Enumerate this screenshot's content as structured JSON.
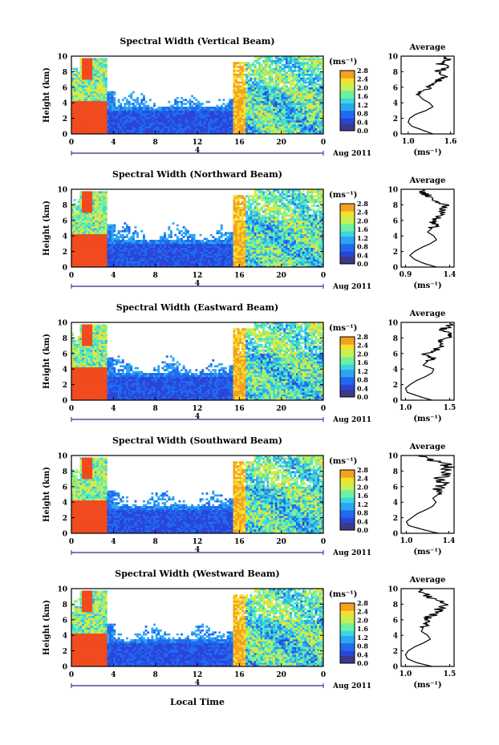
{
  "figure": {
    "xlabel": "Local Time",
    "date_label": "Aug 2011",
    "day_marker": "4"
  },
  "colorbar": {
    "unit": "(ms⁻¹)",
    "ticks": [
      "0.0",
      "0.4",
      "0.8",
      "1.2",
      "1.6",
      "2.0",
      "2.4",
      "2.8"
    ],
    "colors": [
      "#3a3a8c",
      "#2a44d8",
      "#1f6af0",
      "#2da6f0",
      "#38d8e0",
      "#6ff0a0",
      "#c8f050",
      "#f5e02a",
      "#f5a020",
      "#f04a1e"
    ]
  },
  "chart_data": [
    {
      "type": "heatmap",
      "title": "Spectral Width (Vertical Beam)",
      "ylabel": "Height (km)",
      "x_ticks": [
        "0",
        "4",
        "8",
        "12",
        "16",
        "20",
        "0"
      ],
      "y_ticks": [
        "0",
        "2",
        "4",
        "6",
        "8",
        "10"
      ],
      "xlim": [
        0,
        24
      ],
      "ylim": [
        0,
        10
      ],
      "avg_panel": {
        "title": "Average",
        "xlabel": "(ms⁻¹)",
        "x_ticks": [
          "1.0",
          "1.6"
        ],
        "xlim": [
          0.9,
          1.65
        ],
        "y_ticks": [
          "0",
          "2",
          "4",
          "6",
          "8",
          "10"
        ],
        "profile_heights": [
          0,
          0.5,
          1,
          1.5,
          2,
          2.5,
          3,
          3.5,
          4,
          4.5,
          5,
          5.5,
          6,
          6.5,
          7,
          7.5,
          8,
          8.5,
          9,
          9.5,
          10
        ],
        "profile_values": [
          1.35,
          1.2,
          1.05,
          1.0,
          1.02,
          1.1,
          1.25,
          1.35,
          1.3,
          1.2,
          1.15,
          1.2,
          1.3,
          1.38,
          1.45,
          1.55,
          1.4,
          1.58,
          1.45,
          1.55,
          1.5
        ]
      }
    },
    {
      "type": "heatmap",
      "title": "Spectral Width (Northward Beam)",
      "ylabel": "Height (km)",
      "x_ticks": [
        "0",
        "4",
        "8",
        "12",
        "16",
        "20",
        "0"
      ],
      "y_ticks": [
        "0",
        "2",
        "4",
        "6",
        "8",
        "10"
      ],
      "xlim": [
        0,
        24
      ],
      "ylim": [
        0,
        10
      ],
      "avg_panel": {
        "title": "Average",
        "xlabel": "(ms⁻¹)",
        "x_ticks": [
          "0.9",
          "1.4"
        ],
        "xlim": [
          0.85,
          1.45
        ],
        "y_ticks": [
          "0",
          "2",
          "4",
          "6",
          "8",
          "10"
        ],
        "profile_heights": [
          0,
          0.5,
          1,
          1.5,
          2,
          2.5,
          3,
          3.5,
          4,
          4.5,
          5,
          5.5,
          6,
          6.5,
          7,
          7.5,
          8,
          8.5,
          9,
          9.5,
          10
        ],
        "profile_values": [
          1.25,
          1.1,
          1.0,
          0.95,
          1.0,
          1.08,
          1.18,
          1.25,
          1.22,
          1.15,
          1.2,
          1.25,
          1.2,
          1.3,
          1.35,
          1.3,
          1.38,
          1.25,
          1.2,
          1.1,
          1.05
        ]
      }
    },
    {
      "type": "heatmap",
      "title": "Spectral Width (Eastward Beam)",
      "ylabel": "Height (km)",
      "x_ticks": [
        "0",
        "4",
        "8",
        "12",
        "16",
        "20",
        "0"
      ],
      "y_ticks": [
        "0",
        "2",
        "4",
        "6",
        "8",
        "10"
      ],
      "xlim": [
        0,
        24
      ],
      "ylim": [
        0,
        10
      ],
      "avg_panel": {
        "title": "Average",
        "xlabel": "(ms⁻¹)",
        "x_ticks": [
          "1.0",
          "1.5"
        ],
        "xlim": [
          0.95,
          1.55
        ],
        "y_ticks": [
          "0",
          "2",
          "4",
          "6",
          "8",
          "10"
        ],
        "profile_heights": [
          0,
          0.5,
          1,
          1.5,
          2,
          2.5,
          3,
          3.5,
          4,
          4.5,
          5,
          5.5,
          6,
          6.5,
          7,
          7.5,
          8,
          8.5,
          9,
          9.5,
          10
        ],
        "profile_values": [
          1.3,
          1.15,
          1.02,
          1.0,
          1.05,
          1.12,
          1.22,
          1.3,
          1.32,
          1.2,
          1.25,
          1.3,
          1.22,
          1.35,
          1.4,
          1.35,
          1.45,
          1.5,
          1.4,
          1.5,
          1.45
        ]
      }
    },
    {
      "type": "heatmap",
      "title": "Spectral Width (Southward Beam)",
      "ylabel": "Height (km)",
      "x_ticks": [
        "0",
        "4",
        "8",
        "12",
        "16",
        "20",
        "0"
      ],
      "y_ticks": [
        "0",
        "2",
        "4",
        "6",
        "8",
        "10"
      ],
      "xlim": [
        0,
        24
      ],
      "ylim": [
        0,
        10
      ],
      "avg_panel": {
        "title": "Average",
        "xlabel": "(ms⁻¹)",
        "x_ticks": [
          "1.0",
          "1.4"
        ],
        "xlim": [
          0.95,
          1.45
        ],
        "y_ticks": [
          "0",
          "2",
          "4",
          "6",
          "8",
          "10"
        ],
        "profile_heights": [
          0,
          0.5,
          1,
          1.5,
          2,
          2.5,
          3,
          3.5,
          4,
          4.5,
          5,
          5.5,
          6,
          6.5,
          7,
          7.5,
          8,
          8.5,
          9,
          9.5,
          10
        ],
        "profile_values": [
          1.3,
          1.15,
          1.02,
          1.0,
          1.05,
          1.1,
          1.18,
          1.25,
          1.28,
          1.25,
          1.3,
          1.28,
          1.32,
          1.35,
          1.3,
          1.38,
          1.35,
          1.4,
          1.35,
          1.2,
          1.1
        ]
      }
    },
    {
      "type": "heatmap",
      "title": "Spectral Width (Westward Beam)",
      "ylabel": "Height (km)",
      "x_ticks": [
        "0",
        "4",
        "8",
        "12",
        "16",
        "20",
        "0"
      ],
      "y_ticks": [
        "0",
        "2",
        "4",
        "6",
        "8",
        "10"
      ],
      "xlim": [
        0,
        24
      ],
      "ylim": [
        0,
        10
      ],
      "avg_panel": {
        "title": "Average",
        "xlabel": "(ms⁻¹)",
        "x_ticks": [
          "1.0",
          "1.5"
        ],
        "xlim": [
          0.95,
          1.55
        ],
        "y_ticks": [
          "0",
          "2",
          "4",
          "6",
          "8",
          "10"
        ],
        "profile_heights": [
          0,
          0.5,
          1,
          1.5,
          2,
          2.5,
          3,
          3.5,
          4,
          4.5,
          5,
          5.5,
          6,
          6.5,
          7,
          7.5,
          8,
          8.5,
          9,
          9.5,
          10
        ],
        "profile_values": [
          1.3,
          1.12,
          1.02,
          1.0,
          1.03,
          1.1,
          1.2,
          1.28,
          1.25,
          1.18,
          1.2,
          1.25,
          1.22,
          1.3,
          1.35,
          1.4,
          1.5,
          1.35,
          1.25,
          1.2,
          1.15
        ]
      }
    }
  ]
}
